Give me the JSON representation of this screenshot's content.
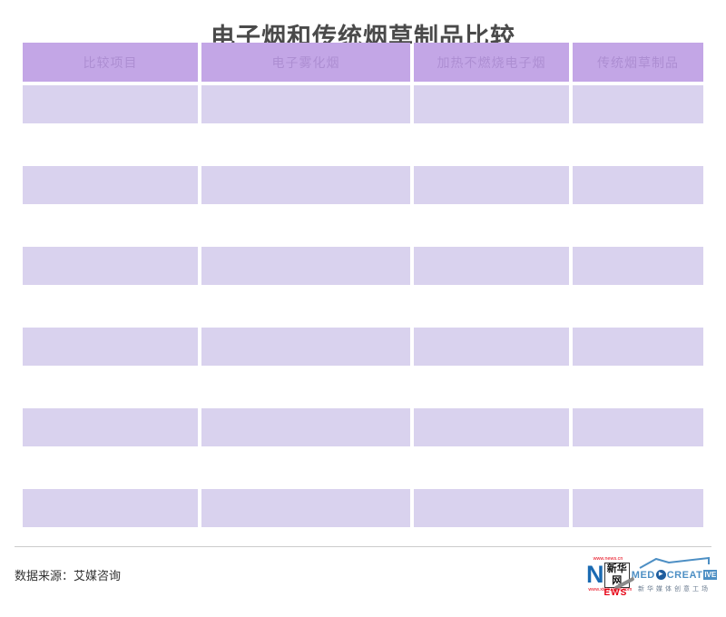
{
  "page": {
    "title": "电子烟和传统烟草制品比较"
  },
  "chart_data": {
    "type": "table",
    "title": "电子烟和传统烟草制品比较",
    "columns": [
      "比较项目",
      "电子雾化烟",
      "加热不燃烧电子烟",
      "传统烟草制品"
    ],
    "rows": [
      [
        "",
        "",
        "",
        ""
      ],
      [
        "",
        "",
        "",
        ""
      ],
      [
        "",
        "",
        "",
        ""
      ],
      [
        "",
        "",
        "",
        ""
      ],
      [
        "",
        "",
        "",
        ""
      ],
      [
        "",
        "",
        "",
        ""
      ]
    ]
  },
  "footer": {
    "source": "数据来源：艾媒咨询"
  },
  "logos": {
    "xinhuanet": {
      "top_url": "www.news.cn",
      "n_letter": "N",
      "name_cn": "新华网",
      "news_suffix": "EWS",
      "bottom_url": "www.xinhuanet.com"
    },
    "medcreative": {
      "med": "MED",
      "play_icon": "▶",
      "creative": "CREAT",
      "boxed": "IVE",
      "subtitle": "新华媒体创意工场"
    }
  },
  "colors": {
    "header_bg": "#c3a6e6",
    "header_text": "#ad8ed2",
    "row_bg": "#d9d2ee",
    "title_text": "#4a4a4a",
    "xinhua_red": "#e60012",
    "xinhua_blue": "#1a6ab2",
    "med_light_blue": "#4d8fc4",
    "med_dark_blue": "#1e5d9e"
  }
}
